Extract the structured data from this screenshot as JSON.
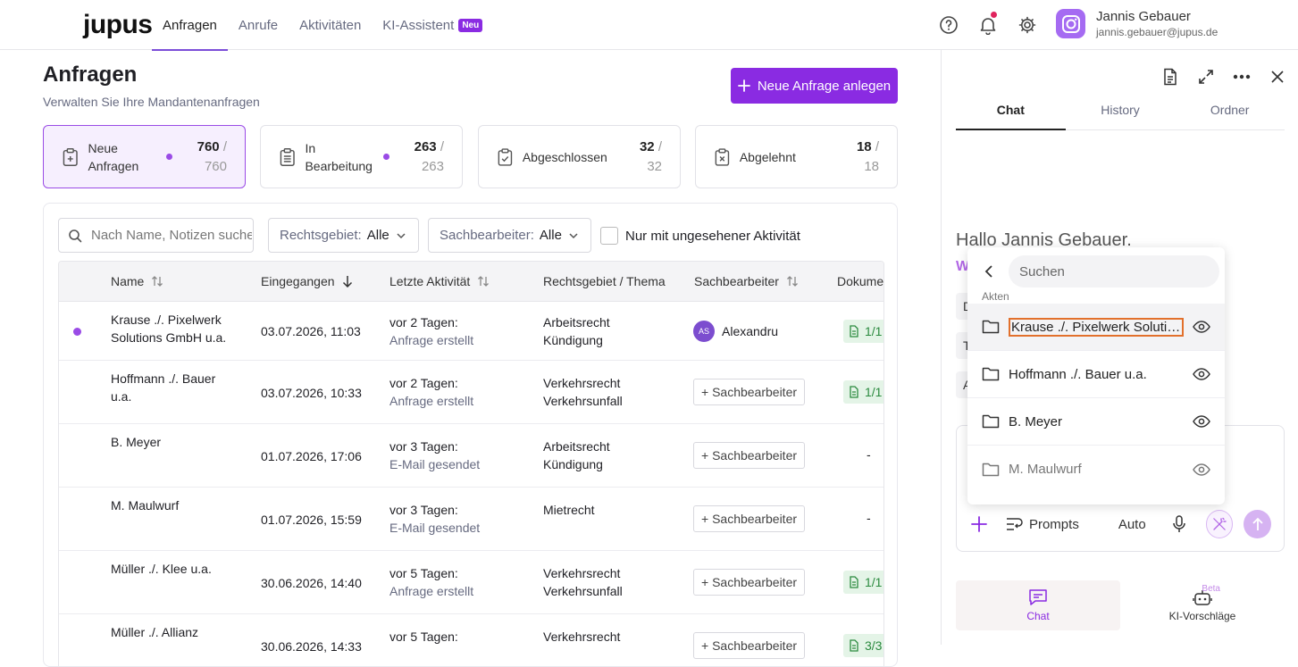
{
  "brand": "jupus",
  "nav": {
    "items": [
      "Anfragen",
      "Anrufe",
      "Aktivitäten",
      "KI-Assistent"
    ],
    "ki_badge": "Neu"
  },
  "user": {
    "name": "Jannis Gebauer",
    "email": "jannis.gebauer@jupus.de"
  },
  "page": {
    "title": "Anfragen",
    "subtitle": "Verwalten Sie Ihre Mandantenanfragen",
    "new_button": "Neue Anfrage anlegen"
  },
  "stats": [
    {
      "label": "Neue Anfragen",
      "count": "760",
      "total": "/ 760"
    },
    {
      "label": "In Bearbeitung",
      "count": "263",
      "total": "/ 263"
    },
    {
      "label": "Abgeschlossen",
      "count": "32",
      "total": "/ 32"
    },
    {
      "label": "Abgelehnt",
      "count": "18",
      "total": "/ 18"
    }
  ],
  "filters": {
    "search_placeholder": "Nach Name, Notizen suchen",
    "rechtsgebiet_label": "Rechtsgebiet:",
    "rechtsgebiet_value": "Alle",
    "sachbearbeiter_label": "Sachbearbeiter:",
    "sachbearbeiter_value": "Alle",
    "unseen_label": "Nur mit ungesehener Aktivität"
  },
  "table": {
    "headers": [
      "Name",
      "Eingegangen",
      "Letzte Aktivität",
      "Rechtsgebiet / Thema",
      "Sachbearbeiter",
      "Dokume"
    ],
    "add_assignee": "+ Sachbearbeiter",
    "rows": [
      {
        "name1": "Krause ./. Pixelwerk",
        "name2": "Solutions GmbH u.a.",
        "date": "03.07.2026, 11:03",
        "act1": "vor 2 Tagen:",
        "act2": "Anfrage erstellt",
        "area1": "Arbeitsrecht",
        "area2": "Kündigung",
        "assignee": "Alexandru",
        "initials": "AS",
        "doc": "1/1"
      },
      {
        "name1": "Hoffmann ./. Bauer",
        "name2": "u.a.",
        "date": "03.07.2026, 10:33",
        "act1": "vor 2 Tagen:",
        "act2": "Anfrage erstellt",
        "area1": "Verkehrsrecht",
        "area2": "Verkehrsunfall",
        "doc": "1/1"
      },
      {
        "name1": "B. Meyer",
        "name2": "",
        "date": "01.07.2026, 17:06",
        "act1": "vor 3 Tagen:",
        "act2": "E-Mail gesendet",
        "area1": "Arbeitsrecht",
        "area2": "Kündigung",
        "doc": "-"
      },
      {
        "name1": "M. Maulwurf",
        "name2": "",
        "date": "01.07.2026, 15:59",
        "act1": "vor 3 Tagen:",
        "act2": "E-Mail gesendet",
        "area1": "Mietrecht",
        "area2": "",
        "doc": "-"
      },
      {
        "name1": "Müller ./. Klee u.a.",
        "name2": "",
        "date": "30.06.2026, 14:40",
        "act1": "vor 5 Tagen:",
        "act2": "Anfrage erstellt",
        "area1": "Verkehrsrecht",
        "area2": "Verkehrsunfall",
        "doc": "1/1"
      },
      {
        "name1": "Müller ./. Allianz",
        "name2": "",
        "date": "30.06.2026, 14:33",
        "act1": "vor 5 Tagen:",
        "act2": "",
        "area1": "Verkehrsrecht",
        "area2": "",
        "doc": "3/3"
      }
    ]
  },
  "panel": {
    "tabs": [
      "Chat",
      "History",
      "Ordner"
    ],
    "greeting": "Hallo Jannis Gebauer.",
    "greeting2": "W",
    "side_letters": [
      "D",
      "T",
      "A"
    ],
    "prompts_label": "Prompts",
    "mode_label": "Auto",
    "bottom_nav": [
      "Chat",
      "KI-Vorschläge"
    ],
    "beta_label": "Beta"
  },
  "popup": {
    "search_placeholder": "Suchen",
    "section": "Akten",
    "items": [
      "Krause ./. Pixelwerk Solutions GmbH u.a.",
      "Hoffmann ./. Bauer u.a.",
      "B. Meyer",
      "M. Maulwurf"
    ]
  },
  "colors": {
    "accent": "#8a2be2",
    "highlight": "#e2702c",
    "doc_green": "#2a8a3e"
  }
}
